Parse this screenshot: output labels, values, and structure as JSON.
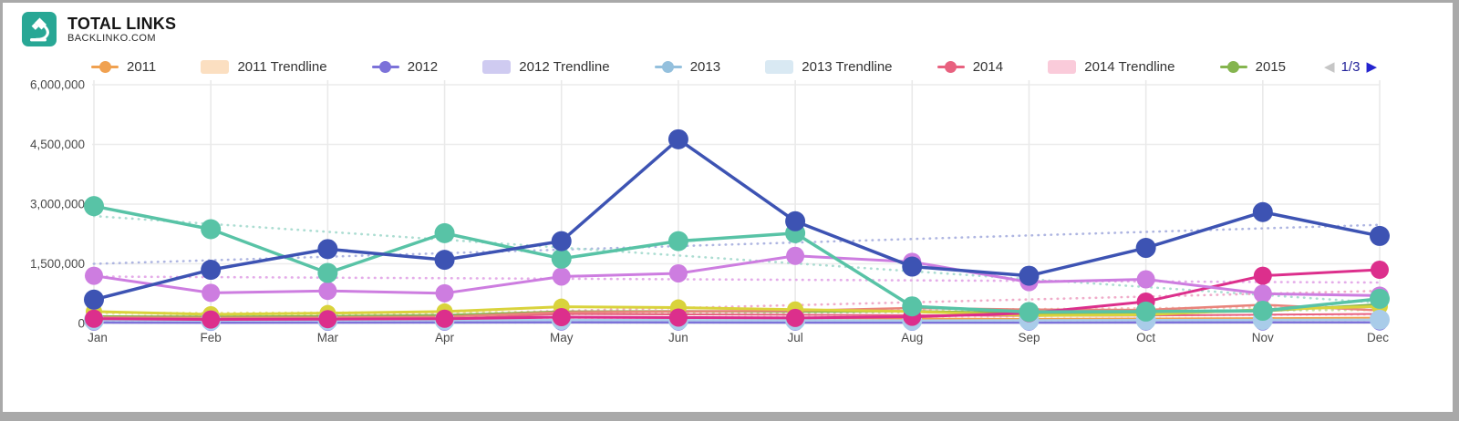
{
  "header": {
    "title": "TOTAL LINKS",
    "subtitle": "BACKLINKO.COM",
    "logo_bg": "#28a795",
    "logo_glyph": "microscope"
  },
  "legend": {
    "items": [
      {
        "label": "2011",
        "type": "line-dot",
        "color": "#F0A150"
      },
      {
        "label": "2011 Trendline",
        "type": "swatch",
        "color": "#FBDFC1"
      },
      {
        "label": "2012",
        "type": "line-dot",
        "color": "#7C72D9"
      },
      {
        "label": "2012 Trendline",
        "type": "swatch",
        "color": "#CFCBF1"
      },
      {
        "label": "2013",
        "type": "line-dot",
        "color": "#94C0DD"
      },
      {
        "label": "2013 Trendline",
        "type": "swatch",
        "color": "#D9E9F3"
      },
      {
        "label": "2014",
        "type": "line-dot",
        "color": "#E8617F"
      },
      {
        "label": "2014 Trendline",
        "type": "swatch",
        "color": "#FACBDA"
      },
      {
        "label": "2015",
        "type": "line-dot",
        "color": "#85B54F"
      }
    ],
    "pagination": {
      "current": "1/3",
      "prev_color": "#c6c6c6",
      "next_color": "#2424cf"
    }
  },
  "chart_data": {
    "type": "line",
    "title": "TOTAL LINKS",
    "categories": [
      "Jan",
      "Feb",
      "Mar",
      "Apr",
      "May",
      "Jun",
      "Jul",
      "Aug",
      "Sep",
      "Oct",
      "Nov",
      "Dec"
    ],
    "y_ticks": [
      0,
      1500000,
      3000000,
      4500000,
      6000000
    ],
    "y_tick_labels": [
      "0",
      "1,500,000",
      "3,000,000",
      "4,500,000",
      "6,000,000"
    ],
    "ylim": [
      0,
      6000000
    ],
    "grid": true,
    "legend_position": "top",
    "series": [
      {
        "name": "2011",
        "color": "#F0A150",
        "width": 2,
        "dot": 4,
        "values": [
          130000,
          115000,
          105000,
          125000,
          155000,
          145000,
          135000,
          125000,
          115000,
          125000,
          135000,
          145000
        ]
      },
      {
        "name": "2014",
        "color": "#E8617F",
        "width": 2,
        "dot": 4,
        "values": [
          110000,
          95000,
          105000,
          115000,
          240000,
          230000,
          220000,
          210000,
          190000,
          200000,
          220000,
          240000
        ]
      },
      {
        "name": "2015",
        "color": "#85B54F",
        "width": 2.5,
        "dot": 4,
        "values": [
          180000,
          170000,
          180000,
          210000,
          300000,
          310000,
          300000,
          310000,
          260000,
          270000,
          310000,
          480000
        ]
      },
      {
        "name": "series-coral",
        "color": "#E9837B",
        "width": 2.5,
        "dot": 7,
        "values": [
          150000,
          140000,
          150000,
          170000,
          280000,
          300000,
          320000,
          390000,
          350000,
          340000,
          470000,
          330000
        ]
      },
      {
        "name": "series-yellow",
        "color": "#D9D33C",
        "width": 3,
        "dot": 9,
        "values": [
          300000,
          230000,
          260000,
          300000,
          420000,
          400000,
          350000,
          300000,
          200000,
          220000,
          350000,
          430000
        ]
      },
      {
        "name": "2012",
        "color": "#7C72D9",
        "width": 2.5,
        "dot": 9,
        "values": [
          25000,
          20000,
          22000,
          25000,
          28000,
          26000,
          24000,
          22000,
          24000,
          26000,
          28000,
          30000
        ]
      },
      {
        "name": "2013",
        "color": "#A9CCE9",
        "width": 2.5,
        "dot": 11,
        "values": [
          85000,
          75000,
          80000,
          85000,
          90000,
          85000,
          80000,
          75000,
          80000,
          85000,
          90000,
          95000
        ]
      },
      {
        "name": "series-cerise",
        "color": "#DC2F8C",
        "width": 3,
        "dot": 10,
        "values": [
          120000,
          100000,
          110000,
          120000,
          160000,
          150000,
          140000,
          170000,
          260000,
          550000,
          1200000,
          1350000
        ]
      },
      {
        "name": "series-orchid",
        "color": "#CD7DE0",
        "width": 3,
        "dot": 10,
        "values": [
          1200000,
          770000,
          820000,
          760000,
          1180000,
          1260000,
          1700000,
          1550000,
          1040000,
          1110000,
          750000,
          700000
        ]
      },
      {
        "name": "series-teal",
        "color": "#58C3A6",
        "width": 3.5,
        "dot": 11,
        "values": [
          2950000,
          2370000,
          1270000,
          2270000,
          1630000,
          2070000,
          2270000,
          430000,
          290000,
          300000,
          320000,
          620000
        ]
      },
      {
        "name": "series-blue",
        "color": "#3D53B3",
        "width": 3.5,
        "dot": 11,
        "values": [
          600000,
          1350000,
          1870000,
          1600000,
          2070000,
          4630000,
          2570000,
          1430000,
          1200000,
          1900000,
          2800000,
          2200000
        ]
      }
    ],
    "trendlines": [
      {
        "name": "trend-blue",
        "color": "#AAB2E0",
        "start": 1500000,
        "end": 2480000
      },
      {
        "name": "trend-teal",
        "color": "#A8DCD0",
        "start": 2700000,
        "end": 520000
      },
      {
        "name": "trend-orchid",
        "color": "#E3A8E8",
        "start": 1180000,
        "end": 1030000
      },
      {
        "name": "trend-cerise",
        "color": "#F0A8C8",
        "start": 30000,
        "end": 820000
      },
      {
        "name": "trend-coral",
        "color": "#F3C4BC",
        "start": 180000,
        "end": 430000
      },
      {
        "name": "trend-yellow",
        "color": "#E8E49A",
        "start": 260000,
        "end": 340000
      },
      {
        "name": "trend-2015",
        "color": "#C3DCA8",
        "start": 170000,
        "end": 350000
      },
      {
        "name": "trend-2014",
        "color": "#FACBDA",
        "start": 105000,
        "end": 225000
      },
      {
        "name": "trend-2011",
        "color": "#FBDFC1",
        "start": 125000,
        "end": 128000
      },
      {
        "name": "trend-2013",
        "color": "#D9E9F3",
        "start": 82000,
        "end": 85000
      },
      {
        "name": "trend-2012",
        "color": "#CFCBF1",
        "start": 24000,
        "end": 27000
      }
    ]
  }
}
